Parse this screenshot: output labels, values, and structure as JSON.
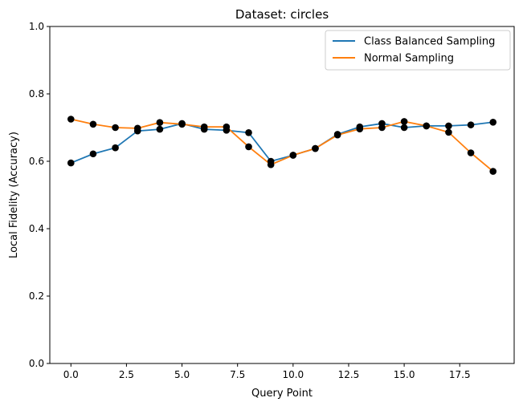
{
  "chart_data": {
    "type": "line",
    "title": "Dataset: circles",
    "xlabel": "Query Point",
    "ylabel": "Local Fidelity (Accuracy)",
    "xlim": [
      -0.95,
      19.95
    ],
    "ylim": [
      0.0,
      1.0
    ],
    "xticks": [
      0.0,
      2.5,
      5.0,
      7.5,
      10.0,
      12.5,
      15.0,
      17.5
    ],
    "xtick_labels": [
      "0.0",
      "2.5",
      "5.0",
      "7.5",
      "10.0",
      "12.5",
      "15.0",
      "17.5"
    ],
    "yticks": [
      0.0,
      0.2,
      0.4,
      0.6,
      0.8,
      1.0
    ],
    "ytick_labels": [
      "0.0",
      "0.2",
      "0.4",
      "0.6",
      "0.8",
      "1.0"
    ],
    "grid": false,
    "legend_position": "top-right",
    "marker": "black filled circle",
    "x": [
      0,
      1,
      2,
      3,
      4,
      5,
      6,
      7,
      8,
      9,
      10,
      11,
      12,
      13,
      14,
      15,
      16,
      17,
      18,
      19
    ],
    "series": [
      {
        "name": "Class Balanced Sampling",
        "color": "#1f77b4",
        "values": [
          0.595,
          0.622,
          0.64,
          0.69,
          0.695,
          0.712,
          0.695,
          0.692,
          0.685,
          0.6,
          0.618,
          0.638,
          0.68,
          0.702,
          0.712,
          0.7,
          0.705,
          0.705,
          0.708,
          0.716
        ]
      },
      {
        "name": "Normal Sampling",
        "color": "#ff7f0e",
        "values": [
          0.725,
          0.71,
          0.7,
          0.698,
          0.715,
          0.71,
          0.702,
          0.702,
          0.643,
          0.59,
          0.618,
          0.638,
          0.678,
          0.696,
          0.7,
          0.718,
          0.705,
          0.686,
          0.625,
          0.57
        ]
      }
    ]
  }
}
